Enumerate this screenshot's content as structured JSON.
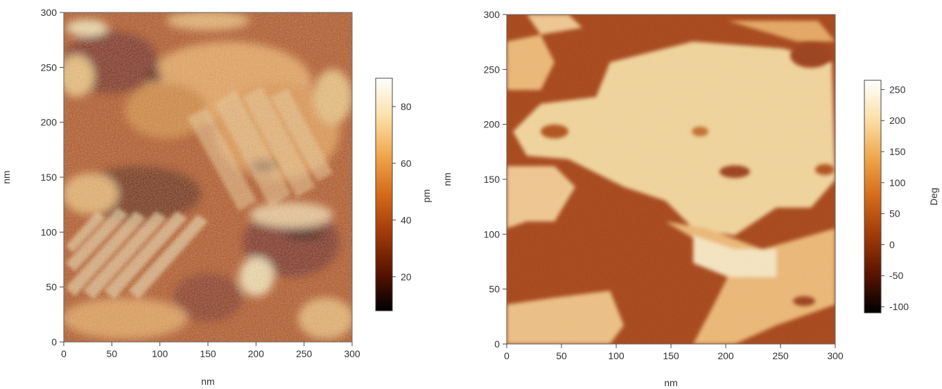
{
  "chart_data": [
    {
      "type": "heatmap",
      "xlabel": "nm",
      "ylabel": "nm",
      "xlim": [
        0,
        300
      ],
      "ylim": [
        0,
        300
      ],
      "xticks": [
        "0",
        "50",
        "100",
        "150",
        "200",
        "250",
        "300"
      ],
      "yticks": [
        "0",
        "50",
        "100",
        "150",
        "200",
        "250",
        "300"
      ],
      "colorbar": {
        "label": "pm",
        "range": [
          8,
          90
        ],
        "ticks": [
          "20",
          "40",
          "60",
          "80"
        ],
        "tick_values": [
          20,
          40,
          60,
          80
        ],
        "colormap": [
          "#000000",
          "#5a1400",
          "#a03a08",
          "#d46a1a",
          "#f0a64a",
          "#fbe0a8",
          "#ffffff"
        ]
      }
    },
    {
      "type": "heatmap",
      "xlabel": "nm",
      "ylabel": "nm",
      "xlim": [
        0,
        300
      ],
      "ylim": [
        0,
        300
      ],
      "xticks": [
        "0",
        "50",
        "100",
        "150",
        "200",
        "250",
        "300"
      ],
      "yticks": [
        "0",
        "50",
        "100",
        "150",
        "200",
        "250",
        "300"
      ],
      "colorbar": {
        "label": "Deg",
        "range": [
          -110,
          265
        ],
        "ticks": [
          "-100",
          "-50",
          "0",
          "50",
          "100",
          "150",
          "200",
          "250"
        ],
        "tick_values": [
          -100,
          -50,
          0,
          50,
          100,
          150,
          200,
          250
        ],
        "colormap": [
          "#000000",
          "#5a1400",
          "#a03a08",
          "#d46a1a",
          "#f0a64a",
          "#fbe0a8",
          "#ffffff"
        ]
      }
    }
  ]
}
